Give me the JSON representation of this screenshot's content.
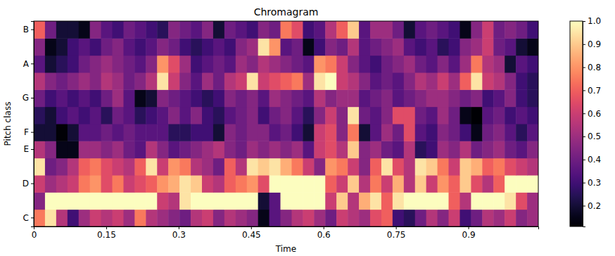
{
  "chart_data": {
    "type": "heatmap",
    "title": "Chromagram",
    "x_label": "Time",
    "y_label": "Pitch class",
    "x": [
      0,
      0.0232,
      0.0464,
      0.0697,
      0.0929,
      0.1161,
      0.1393,
      0.1625,
      0.1858,
      0.209,
      0.2322,
      0.2554,
      0.2786,
      0.3019,
      0.3251,
      0.3483,
      0.3715,
      0.3947,
      0.418,
      0.4412,
      0.4644,
      0.4876,
      0.5108,
      0.5341,
      0.5573,
      0.5805,
      0.6037,
      0.6269,
      0.6502,
      0.6734,
      0.6966,
      0.7198,
      0.743,
      0.7663,
      0.7895,
      0.8127,
      0.8359,
      0.8591,
      0.8824,
      0.9056,
      0.9288,
      0.952,
      0.9752,
      0.9985,
      1.0217
    ],
    "xlim": [
      0,
      1.0449
    ],
    "xticks": [
      0,
      0.15,
      0.3,
      0.45,
      0.6,
      0.75,
      0.9
    ],
    "categories": [
      "C",
      null,
      "D",
      null,
      "E",
      "F",
      null,
      "G",
      null,
      "A",
      null,
      "B"
    ],
    "cells": [
      [
        0.75,
        0.95,
        0.55,
        0.3,
        0.5,
        0.6,
        0.55,
        0.6,
        0.5,
        0.75,
        0.55,
        0.5,
        0.45,
        0.4,
        0.55,
        0.6,
        0.45,
        0.55,
        0.5,
        0.45,
        0.15,
        0.35,
        0.45,
        0.55,
        0.6,
        0.5,
        0.4,
        0.6,
        0.55,
        0.5,
        0.65,
        0.7,
        0.3,
        0.25,
        0.4,
        0.55,
        0.45,
        0.6,
        0.3,
        0.4,
        0.55,
        0.5,
        0.6,
        0.45,
        0.5
      ],
      [
        0.45,
        1.0,
        1.0,
        1.0,
        1.0,
        1.0,
        1.0,
        1.0,
        1.0,
        1.0,
        1.0,
        0.6,
        0.55,
        0.95,
        1.0,
        1.0,
        1.0,
        1.0,
        1.0,
        1.0,
        0.2,
        0.35,
        1.0,
        1.0,
        1.0,
        1.0,
        0.6,
        0.9,
        0.55,
        0.85,
        0.95,
        0.7,
        0.95,
        1.0,
        1.0,
        1.0,
        1.0,
        0.7,
        0.55,
        1.0,
        1.0,
        1.0,
        0.95,
        0.65,
        0.5
      ],
      [
        0.6,
        0.5,
        0.55,
        0.6,
        0.75,
        0.8,
        0.65,
        0.75,
        0.6,
        0.65,
        0.7,
        0.8,
        0.85,
        0.95,
        0.9,
        0.6,
        0.55,
        0.7,
        0.75,
        0.8,
        0.65,
        1.0,
        1.0,
        1.0,
        1.0,
        1.0,
        0.7,
        0.6,
        0.9,
        0.55,
        0.75,
        0.6,
        0.85,
        0.55,
        0.9,
        0.6,
        0.8,
        0.7,
        0.9,
        0.65,
        0.55,
        0.7,
        1.0,
        1.0,
        1.0
      ],
      [
        0.95,
        0.4,
        0.45,
        0.55,
        0.7,
        0.75,
        0.65,
        0.6,
        0.55,
        0.7,
        0.95,
        0.6,
        0.8,
        0.75,
        0.55,
        0.5,
        0.4,
        0.7,
        0.55,
        0.95,
        0.9,
        0.95,
        0.85,
        0.75,
        0.6,
        0.45,
        0.8,
        0.75,
        0.6,
        0.45,
        0.7,
        0.95,
        0.65,
        0.55,
        0.95,
        0.9,
        0.75,
        0.6,
        0.9,
        0.85,
        0.7,
        0.75,
        0.65,
        0.6,
        0.55
      ],
      [
        0.55,
        0.45,
        0.15,
        0.15,
        0.5,
        0.5,
        0.45,
        0.5,
        0.4,
        0.35,
        0.55,
        0.45,
        0.35,
        0.4,
        0.45,
        0.5,
        0.55,
        0.45,
        0.4,
        0.5,
        0.45,
        0.5,
        0.45,
        0.5,
        0.35,
        0.6,
        0.65,
        0.55,
        0.9,
        0.45,
        0.5,
        0.4,
        0.35,
        0.55,
        0.25,
        0.3,
        0.5,
        0.45,
        0.55,
        0.4,
        0.45,
        0.5,
        0.4,
        0.35,
        0.45
      ],
      [
        0.2,
        0.2,
        0.12,
        0.2,
        0.35,
        0.35,
        0.4,
        0.35,
        0.4,
        0.35,
        0.35,
        0.35,
        0.25,
        0.25,
        0.3,
        0.3,
        0.2,
        0.45,
        0.4,
        0.45,
        0.45,
        0.35,
        0.4,
        0.3,
        0.2,
        0.6,
        0.65,
        0.45,
        0.75,
        0.2,
        0.35,
        0.5,
        0.4,
        0.65,
        0.35,
        0.3,
        0.45,
        0.4,
        0.3,
        0.15,
        0.4,
        0.45,
        0.35,
        0.25,
        0.35
      ],
      [
        0.25,
        0.2,
        0.3,
        0.35,
        0.3,
        0.35,
        0.25,
        0.4,
        0.35,
        0.25,
        0.3,
        0.35,
        0.45,
        0.35,
        0.45,
        0.3,
        0.25,
        0.35,
        0.4,
        0.45,
        0.3,
        0.4,
        0.45,
        0.35,
        0.25,
        0.45,
        0.6,
        0.45,
        0.95,
        0.4,
        0.35,
        0.45,
        0.65,
        0.65,
        0.4,
        0.35,
        0.5,
        0.4,
        0.15,
        0.1,
        0.35,
        0.4,
        0.3,
        0.35,
        0.3
      ],
      [
        0.4,
        0.3,
        0.35,
        0.3,
        0.35,
        0.3,
        0.4,
        0.5,
        0.35,
        0.15,
        0.2,
        0.45,
        0.4,
        0.35,
        0.3,
        0.25,
        0.3,
        0.45,
        0.4,
        0.45,
        0.35,
        0.5,
        0.45,
        0.4,
        0.35,
        0.55,
        0.45,
        0.5,
        0.5,
        0.35,
        0.4,
        0.45,
        0.35,
        0.4,
        0.45,
        0.5,
        0.5,
        0.45,
        0.4,
        0.45,
        0.3,
        0.35,
        0.45,
        0.3,
        0.25
      ],
      [
        0.55,
        0.45,
        0.4,
        0.45,
        0.5,
        0.45,
        0.55,
        0.5,
        0.4,
        0.45,
        0.55,
        0.95,
        0.6,
        0.45,
        0.35,
        0.5,
        0.4,
        0.55,
        0.6,
        0.95,
        0.6,
        0.65,
        0.7,
        0.75,
        0.5,
        0.95,
        1.0,
        0.6,
        0.55,
        0.45,
        0.35,
        0.4,
        0.35,
        0.45,
        0.55,
        0.5,
        0.6,
        0.5,
        0.7,
        0.95,
        0.6,
        0.55,
        0.45,
        0.3,
        0.25
      ],
      [
        0.35,
        0.2,
        0.25,
        0.3,
        0.4,
        0.45,
        0.5,
        0.45,
        0.4,
        0.35,
        0.45,
        0.8,
        0.65,
        0.5,
        0.3,
        0.35,
        0.4,
        0.35,
        0.5,
        0.45,
        0.55,
        0.5,
        0.45,
        0.4,
        0.35,
        0.8,
        0.75,
        0.6,
        0.45,
        0.35,
        0.3,
        0.4,
        0.45,
        0.5,
        0.4,
        0.35,
        0.45,
        0.35,
        0.5,
        0.75,
        0.55,
        0.5,
        0.2,
        0.35,
        0.3
      ],
      [
        0.45,
        0.15,
        0.2,
        0.3,
        0.35,
        0.3,
        0.4,
        0.45,
        0.35,
        0.3,
        0.35,
        0.45,
        0.4,
        0.3,
        0.25,
        0.3,
        0.35,
        0.3,
        0.45,
        0.5,
        0.95,
        0.8,
        0.35,
        0.4,
        0.15,
        0.3,
        0.45,
        0.4,
        0.55,
        0.35,
        0.4,
        0.45,
        0.5,
        0.35,
        0.3,
        0.35,
        0.25,
        0.3,
        0.45,
        0.5,
        0.6,
        0.4,
        0.35,
        0.2,
        0.15
      ],
      [
        0.7,
        0.4,
        0.2,
        0.2,
        0.15,
        0.45,
        0.35,
        0.3,
        0.4,
        0.35,
        0.3,
        0.25,
        0.45,
        0.4,
        0.35,
        0.45,
        0.2,
        0.4,
        0.35,
        0.3,
        0.45,
        0.4,
        0.75,
        0.65,
        0.3,
        0.35,
        0.55,
        0.7,
        0.9,
        0.35,
        0.5,
        0.5,
        0.4,
        0.2,
        0.35,
        0.4,
        0.35,
        0.3,
        0.15,
        0.45,
        0.6,
        0.4,
        0.45,
        0.4,
        0.3
      ]
    ],
    "color": "magma",
    "zlim": [
      0.11,
      1.0
    ],
    "zticks": [
      0.2,
      0.3,
      0.4,
      0.5,
      0.6,
      0.7,
      0.8,
      0.9,
      {
        "value": 1,
        "label": "1.0"
      }
    ]
  }
}
